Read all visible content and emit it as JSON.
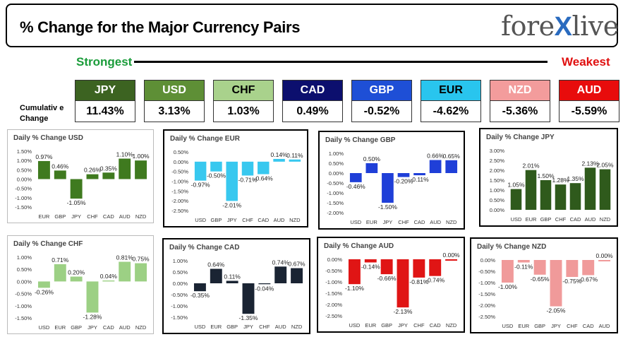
{
  "header": {
    "title": "% Change for the Major Currency Pairs",
    "logo_left": "fore",
    "logo_x": "X",
    "logo_right": "live"
  },
  "legend_row": {
    "strongest": "Strongest",
    "weakest": "Weakest",
    "cumulative_label_1": "Cumulativ e",
    "cumulative_label_2": "Change"
  },
  "ranking": [
    {
      "ccy": "JPY",
      "value": "11.43%",
      "bg": "#3c6321",
      "fg": "#ffffff"
    },
    {
      "ccy": "USD",
      "value": "3.13%",
      "bg": "#5e8f36",
      "fg": "#ffffff"
    },
    {
      "ccy": "CHF",
      "value": "1.03%",
      "bg": "#a9d28c",
      "fg": "#000000"
    },
    {
      "ccy": "CAD",
      "value": "0.49%",
      "bg": "#0c0f6e",
      "fg": "#ffffff"
    },
    {
      "ccy": "GBP",
      "value": "-0.52%",
      "bg": "#1e4fd6",
      "fg": "#ffffff"
    },
    {
      "ccy": "EUR",
      "value": "-4.62%",
      "bg": "#29c5ee",
      "fg": "#000000"
    },
    {
      "ccy": "NZD",
      "value": "-5.36%",
      "bg": "#f39c9c",
      "fg": "#ffffff"
    },
    {
      "ccy": "AUD",
      "value": "-5.59%",
      "bg": "#e80c0c",
      "fg": "#ffffff"
    }
  ],
  "chart_data": [
    {
      "type": "bar",
      "title": "Daily % Change USD",
      "categories": [
        "EUR",
        "GBP",
        "JPY",
        "CHF",
        "CAD",
        "AUD",
        "NZD"
      ],
      "values": [
        0.97,
        0.46,
        -1.05,
        0.26,
        0.35,
        1.1,
        1.0
      ],
      "labels": [
        "0.97%",
        "0.46%",
        "-1.05%",
        "0.26%",
        "0.35%",
        "1.10%",
        "1.00%"
      ],
      "ylim": [
        -1.5,
        1.5
      ],
      "ticks": [
        "1.50%",
        "1.00%",
        "0.50%",
        "0.00%",
        "-0.50%",
        "-1.00%",
        "-1.50%"
      ],
      "color": "#3f7a1f"
    },
    {
      "type": "bar",
      "title": "Daily % Change EUR",
      "categories": [
        "USD",
        "GBP",
        "JPY",
        "CHF",
        "CAD",
        "AUD",
        "NZD"
      ],
      "values": [
        -0.97,
        -0.5,
        -2.01,
        -0.71,
        -0.64,
        0.14,
        0.11
      ],
      "labels": [
        "-0.97%",
        "-0.50%",
        "-2.01%",
        "-0.71%",
        "-0.64%",
        "0.14%",
        "0.11%"
      ],
      "ylim": [
        -2.5,
        0.5
      ],
      "ticks": [
        "0.50%",
        "0.00%",
        "-0.50%",
        "-1.00%",
        "-1.50%",
        "-2.00%",
        "-2.50%"
      ],
      "color": "#38c8ef"
    },
    {
      "type": "bar",
      "title": "Daily % Change GBP",
      "categories": [
        "USD",
        "EUR",
        "JPY",
        "CHF",
        "CAD",
        "AUD",
        "NZD"
      ],
      "values": [
        -0.46,
        0.5,
        -1.5,
        -0.2,
        -0.11,
        0.66,
        0.65
      ],
      "labels": [
        "-0.46%",
        "0.50%",
        "-1.50%",
        "-0.20%",
        "-0.11%",
        "0.66%",
        "0.65%"
      ],
      "ylim": [
        -2.0,
        1.0
      ],
      "ticks": [
        "1.00%",
        "0.50%",
        "0.00%",
        "-0.50%",
        "-1.00%",
        "-1.50%",
        "-2.00%"
      ],
      "color": "#1f3fd8"
    },
    {
      "type": "bar",
      "title": "Daily % Change JPY",
      "categories": [
        "USD",
        "EUR",
        "GBP",
        "CHF",
        "CAD",
        "AUD",
        "NZD"
      ],
      "values": [
        1.05,
        2.01,
        1.5,
        1.28,
        1.35,
        2.13,
        2.05
      ],
      "labels": [
        "1.05%",
        "2.01%",
        "1.50%",
        "1.28%",
        "1.35%",
        "2.13%",
        "2.05%"
      ],
      "ylim": [
        0,
        3.0
      ],
      "ticks": [
        "3.00%",
        "2.50%",
        "2.00%",
        "1.50%",
        "1.00%",
        "0.50%",
        "0.00%"
      ],
      "color": "#2f5a1c"
    },
    {
      "type": "bar",
      "title": "Daily % Change CHF",
      "categories": [
        "USD",
        "EUR",
        "GBP",
        "JPY",
        "CAD",
        "AUD",
        "NZD"
      ],
      "values": [
        -0.26,
        0.71,
        0.2,
        -1.28,
        0.04,
        0.81,
        0.75
      ],
      "labels": [
        "-0.26%",
        "0.71%",
        "0.20%",
        "-1.28%",
        "0.04%",
        "0.81%",
        "0.75%"
      ],
      "ylim": [
        -1.5,
        1.0
      ],
      "ticks": [
        "1.00%",
        "0.50%",
        "0.00%",
        "-0.50%",
        "-1.00%",
        "-1.50%"
      ],
      "color": "#9cd084"
    },
    {
      "type": "bar",
      "title": "Daily % Change CAD",
      "categories": [
        "USD",
        "EUR",
        "GBP",
        "JPY",
        "CHF",
        "AUD",
        "NZD"
      ],
      "values": [
        -0.35,
        0.64,
        0.11,
        -1.35,
        -0.04,
        0.74,
        0.67
      ],
      "labels": [
        "-0.35%",
        "0.64%",
        "0.11%",
        "-1.35%",
        "-0.04%",
        "0.74%",
        "0.67%"
      ],
      "ylim": [
        -1.5,
        1.0
      ],
      "ticks": [
        "1.00%",
        "0.50%",
        "0.00%",
        "-0.50%",
        "-1.00%",
        "-1.50%"
      ],
      "color": "#1a2433"
    },
    {
      "type": "bar",
      "title": "Daily % Change AUD",
      "categories": [
        "USD",
        "EUR",
        "GBP",
        "JPY",
        "CHF",
        "CAD",
        "NZD"
      ],
      "values": [
        -1.1,
        -0.14,
        -0.66,
        -2.13,
        -0.81,
        -0.74,
        0.0
      ],
      "labels": [
        "-1.10%",
        "-0.14%",
        "-0.66%",
        "-2.13%",
        "-0.81%",
        "-0.74%",
        "0.00%"
      ],
      "ylim": [
        -2.5,
        0
      ],
      "ticks": [
        "0.00%",
        "-0.50%",
        "-1.00%",
        "-1.50%",
        "-2.00%",
        "-2.50%"
      ],
      "color": "#e01515"
    },
    {
      "type": "bar",
      "title": "Daily % Change NZD",
      "categories": [
        "USD",
        "EUR",
        "GBP",
        "JPY",
        "CHF",
        "CAD",
        "AUD"
      ],
      "values": [
        -1.0,
        -0.11,
        -0.65,
        -2.05,
        -0.75,
        -0.67,
        0.0
      ],
      "labels": [
        "-1.00%",
        "-0.11%",
        "-0.65%",
        "-2.05%",
        "-0.75%",
        "-0.67%",
        "0.00%"
      ],
      "ylim": [
        -2.5,
        0
      ],
      "ticks": [
        "0.00%",
        "-0.50%",
        "-1.00%",
        "-1.50%",
        "-2.00%",
        "-2.50%"
      ],
      "color": "#f09a9a"
    }
  ]
}
